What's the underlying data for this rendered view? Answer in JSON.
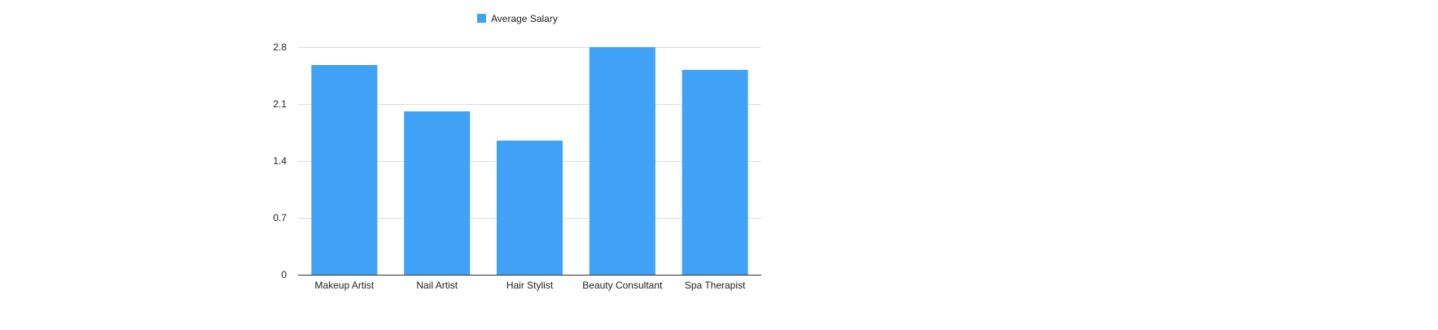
{
  "chart_data": {
    "type": "bar",
    "categories": [
      "Makeup Artist",
      "Nail Artist",
      "Hair Stylist",
      "Beauty Consultant",
      "Spa Therapist"
    ],
    "series": [
      {
        "name": "Average Salary",
        "values": [
          2.58,
          2.01,
          1.65,
          2.8,
          2.52
        ]
      }
    ],
    "yticks": [
      "0",
      "0.7",
      "1.4",
      "2.1",
      "2.8"
    ],
    "ylim": [
      0,
      2.8
    ],
    "grid": true,
    "legend_position": "top-center",
    "title": "",
    "xlabel": "",
    "ylabel": "",
    "colors": {
      "bar": "#3fa2f7",
      "grid": "#dddddd",
      "axis": "#333333"
    }
  }
}
